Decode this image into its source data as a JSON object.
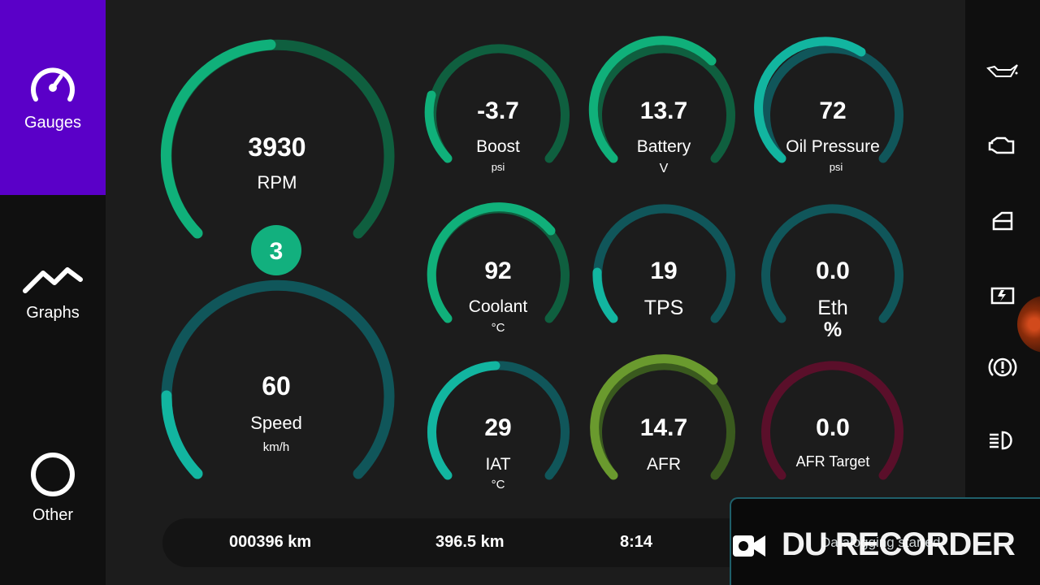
{
  "sidebar": {
    "items": [
      {
        "label": "Gauges",
        "icon": "gauge-icon",
        "active": true
      },
      {
        "label": "Graphs",
        "icon": "graph-icon",
        "active": false
      },
      {
        "label": "Other",
        "icon": "circle-icon",
        "active": false
      }
    ]
  },
  "gear": "3",
  "gauges": {
    "rpm": {
      "value": "3930",
      "label": "RPM",
      "unit": ""
    },
    "speed": {
      "value": "60",
      "label": "Speed",
      "unit": "km/h"
    },
    "boost": {
      "value": "-3.7",
      "label": "Boost",
      "unit": "psi"
    },
    "battery": {
      "value": "13.7",
      "label": "Battery",
      "unit": "V"
    },
    "oil": {
      "value": "72",
      "label": "Oil Pressure",
      "unit": "psi"
    },
    "coolant": {
      "value": "92",
      "label": "Coolant",
      "unit": "°C"
    },
    "tps": {
      "value": "19",
      "label": "TPS",
      "unit": ""
    },
    "eth": {
      "value": "0.0",
      "label": "Eth",
      "unit": "%"
    },
    "iat": {
      "value": "29",
      "label": "IAT",
      "unit": "°C"
    },
    "afr": {
      "value": "14.7",
      "label": "AFR",
      "unit": ""
    },
    "afr_target": {
      "value": "0.0",
      "label": "AFR Target",
      "unit": ""
    }
  },
  "bottom": {
    "odometer": "000396  km",
    "trip": "396.5  km",
    "time": "8:14"
  },
  "right_bar": {
    "icons": [
      "oil-warning-icon",
      "engine-warning-icon",
      "door-open-icon",
      "battery-warning-icon",
      "brake-warning-icon",
      "headlight-icon"
    ]
  },
  "recorder": {
    "logo": "DU RECORDER",
    "status": "Datalogging started"
  },
  "colors": {
    "active_nav": "#5a00c8",
    "green": "#10b07a",
    "teal": "#12b5a0",
    "dark_green_track": "#0f5f3f",
    "dark_teal_track": "#10565a",
    "afr_green": "#6a9a2e",
    "afr_target_track": "#5a0f2a"
  }
}
